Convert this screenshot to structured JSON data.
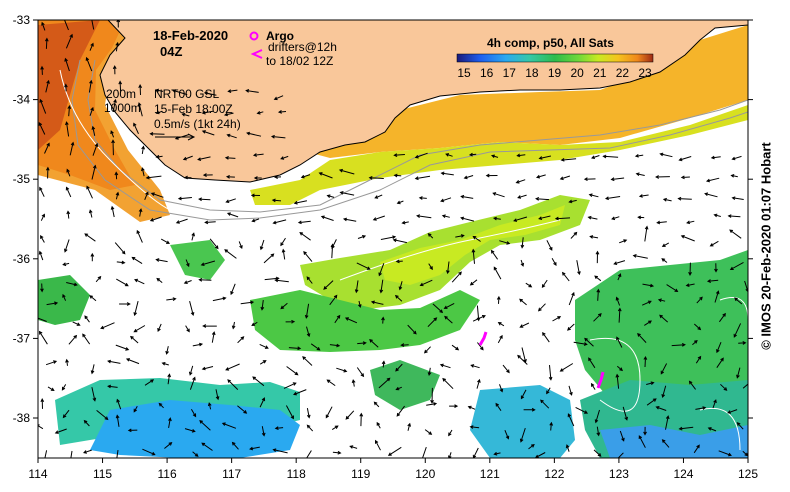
{
  "map": {
    "date": "18-Feb-2020",
    "hour": "04Z",
    "legend_argo": "Argo",
    "legend_drifters_1": "drifters@12h",
    "legend_drifters_2": "to 18/02 12Z",
    "legend_isobath_200": "200m",
    "legend_isobath_1000": "1000m",
    "currents_source": "NRT00 GSL",
    "currents_date": "15-Feb 18:00Z",
    "arrow_scale": "0.5m/s (1kt 24h)",
    "colorbar_title": "4h comp, p50, All Sats",
    "colorbar_ticks": [
      "15",
      "16",
      "17",
      "18",
      "19",
      "20",
      "21",
      "22",
      "23"
    ],
    "credit": "© IMOS 20-Feb-2020 01:07 Hobart",
    "lon_ticks": [
      "114",
      "115",
      "116",
      "117",
      "118",
      "119",
      "120",
      "121",
      "122",
      "123",
      "124",
      "125"
    ],
    "lat_ticks": [
      "-33",
      "-34",
      "-35",
      "-36",
      "-37",
      "-38"
    ],
    "colors": {
      "land": "#f9c79a",
      "argo": "#ff00ff",
      "drifter": "#ff00ff",
      "colormap": [
        "#1a1a7a",
        "#1e5ff0",
        "#2aa9f0",
        "#35c8a8",
        "#2ebc4c",
        "#6fd83a",
        "#c8ea22",
        "#f5c41e",
        "#f0881c",
        "#9e2a14"
      ]
    }
  }
}
